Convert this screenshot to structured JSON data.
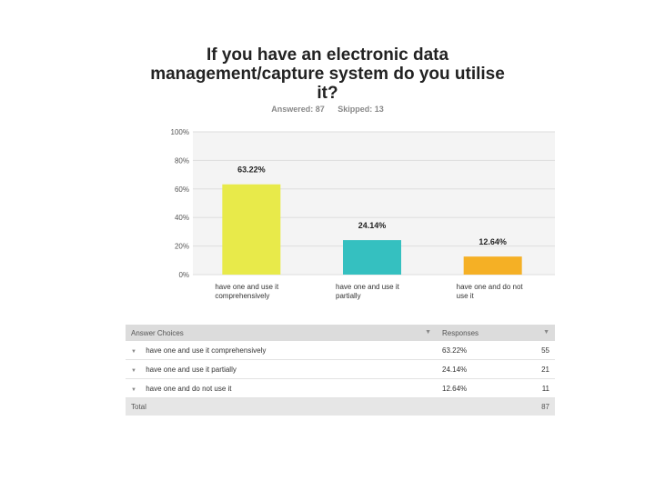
{
  "question": {
    "title": "If you have an electronic data management/capture system do you utilise it?",
    "answered_label": "Answered: 87",
    "skipped_label": "Skipped: 13"
  },
  "chart_data": {
    "type": "bar",
    "categories": [
      "have one and use it comprehensively",
      "have one and use it partially",
      "have one and do not use it"
    ],
    "values": [
      63.22,
      24.14,
      12.64
    ],
    "value_labels": [
      "63.22%",
      "24.14%",
      "12.64%"
    ],
    "colors": [
      "#e8ea4a",
      "#35c0c0",
      "#f5b025"
    ],
    "ylim": [
      0,
      100
    ],
    "y_ticks": [
      0,
      20,
      40,
      60,
      80,
      100
    ],
    "y_tick_labels": [
      "0%",
      "20%",
      "40%",
      "60%",
      "80%",
      "100%"
    ],
    "grid": true,
    "xlabel": "",
    "ylabel": ""
  },
  "table": {
    "header_choices": "Answer Choices",
    "header_responses": "Responses",
    "rows": [
      {
        "choice": "have one and use it comprehensively",
        "percent": "63.22%",
        "count": "55"
      },
      {
        "choice": "have one and use it partially",
        "percent": "24.14%",
        "count": "21"
      },
      {
        "choice": "have one and do not use it",
        "percent": "12.64%",
        "count": "11"
      }
    ],
    "total_label": "Total",
    "total_count": "87"
  }
}
